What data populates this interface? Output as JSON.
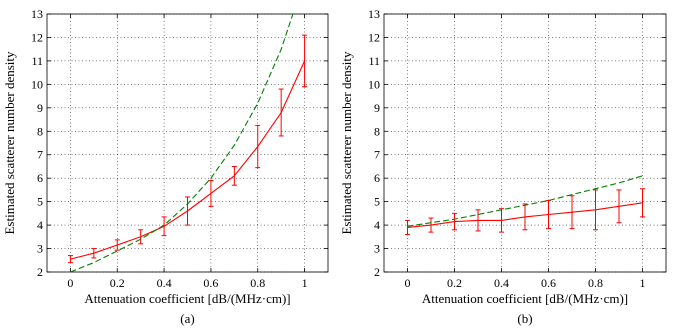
{
  "chart_data": [
    {
      "type": "line",
      "panel_label": "(a)",
      "xlabel": "Attenuation coefficient [dB/(MHz·cm)]",
      "ylabel": "Estimated scatterer number density",
      "xlim": [
        -0.1,
        1.1
      ],
      "ylim": [
        2,
        13
      ],
      "xticks": [
        "0",
        "0.2",
        "0.4",
        "0.6",
        "0.8",
        "1"
      ],
      "xtick_values": [
        0,
        0.2,
        0.4,
        0.6,
        0.8,
        1
      ],
      "yticks": [
        "2",
        "3",
        "4",
        "5",
        "6",
        "7",
        "8",
        "9",
        "10",
        "11",
        "12",
        "13"
      ],
      "ytick_values": [
        2,
        3,
        4,
        5,
        6,
        7,
        8,
        9,
        10,
        11,
        12,
        13
      ],
      "grid": "dotted",
      "series": [
        {
          "style": "solid-with-errorbars",
          "color": "#ff0000",
          "x": [
            0,
            0.1,
            0.2,
            0.3,
            0.4,
            0.5,
            0.6,
            0.7,
            0.8,
            0.9,
            1.0
          ],
          "y": [
            2.55,
            2.8,
            3.15,
            3.5,
            3.95,
            4.6,
            5.35,
            6.1,
            7.35,
            8.8,
            11.0
          ],
          "err": [
            0.15,
            0.2,
            0.22,
            0.3,
            0.4,
            0.6,
            0.55,
            0.4,
            0.9,
            1.0,
            1.1
          ]
        },
        {
          "style": "dashed",
          "color": "#008000",
          "x": [
            0,
            0.1,
            0.2,
            0.3,
            0.4,
            0.5,
            0.6,
            0.7,
            0.8,
            0.9,
            0.95
          ],
          "y": [
            2.0,
            2.4,
            2.9,
            3.4,
            4.0,
            4.9,
            6.0,
            7.4,
            9.2,
            11.5,
            13.0
          ]
        }
      ]
    },
    {
      "type": "line",
      "panel_label": "(b)",
      "xlabel": "Attenuation coefficient [dB/(MHz·cm)]",
      "ylabel": "Estimated scatterer number density",
      "xlim": [
        -0.1,
        1.1
      ],
      "ylim": [
        2,
        13
      ],
      "xticks": [
        "0",
        "0.2",
        "0.4",
        "0.6",
        "0.8",
        "1"
      ],
      "xtick_values": [
        0,
        0.2,
        0.4,
        0.6,
        0.8,
        1
      ],
      "yticks": [
        "2",
        "3",
        "4",
        "5",
        "6",
        "7",
        "8",
        "9",
        "10",
        "11",
        "12",
        "13"
      ],
      "ytick_values": [
        2,
        3,
        4,
        5,
        6,
        7,
        8,
        9,
        10,
        11,
        12,
        13
      ],
      "grid": "dotted",
      "series": [
        {
          "style": "solid-with-errorbars",
          "color": "#ff0000",
          "x": [
            0,
            0.1,
            0.2,
            0.3,
            0.4,
            0.5,
            0.6,
            0.7,
            0.8,
            0.9,
            1.0
          ],
          "y": [
            3.9,
            4.0,
            4.15,
            4.2,
            4.2,
            4.35,
            4.45,
            4.55,
            4.65,
            4.8,
            4.95
          ],
          "err": [
            0.3,
            0.3,
            0.35,
            0.45,
            0.5,
            0.55,
            0.6,
            0.7,
            0.85,
            0.7,
            0.6
          ]
        },
        {
          "style": "dashed",
          "color": "#008000",
          "x": [
            0,
            0.1,
            0.2,
            0.3,
            0.4,
            0.5,
            0.6,
            0.7,
            0.8,
            0.9,
            1.0
          ],
          "y": [
            3.95,
            4.1,
            4.25,
            4.45,
            4.65,
            4.85,
            5.05,
            5.3,
            5.55,
            5.8,
            6.1
          ]
        }
      ]
    }
  ]
}
